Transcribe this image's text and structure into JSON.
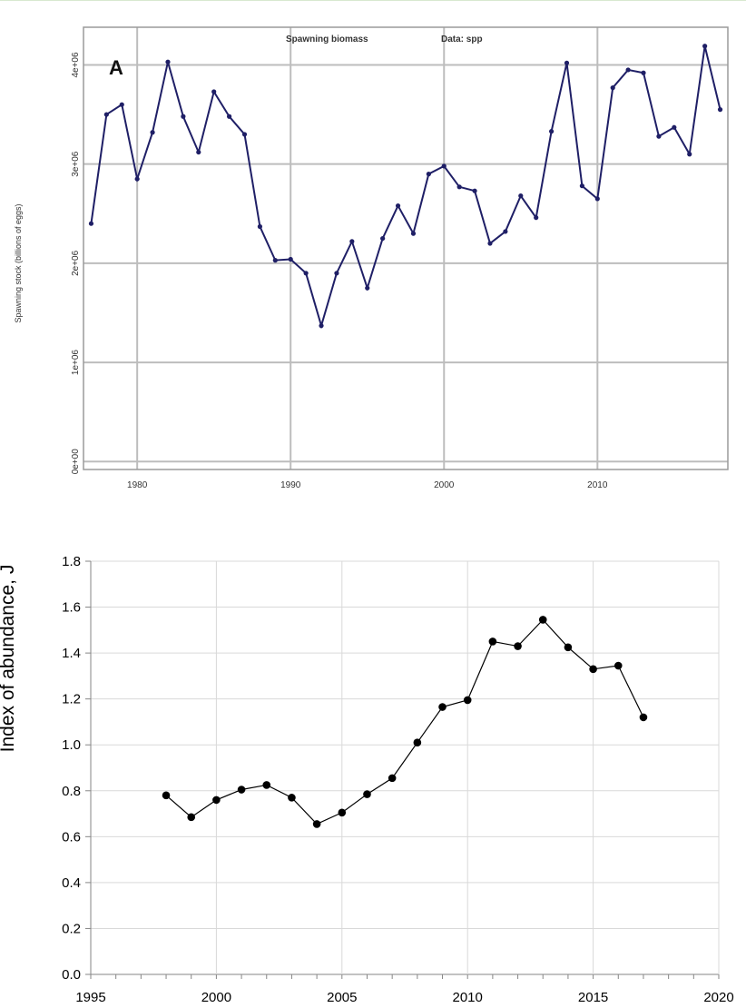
{
  "chart_data": [
    {
      "type": "line",
      "panel_label": "A",
      "title": "Spawning biomass",
      "subtitle": "Data: spp",
      "ylabel": "Spawning stock (billions of eggs)",
      "xlabel": "",
      "xlim": [
        1976.5,
        2018.5
      ],
      "ylim": [
        -0.08,
        4.38
      ],
      "y_scale_factor": 1000000,
      "x_ticks": [
        1980,
        1990,
        2000,
        2010
      ],
      "y_ticks": [
        0,
        1,
        2,
        3,
        4
      ],
      "y_tick_labels": [
        "0e+00",
        "1e+06",
        "2e+06",
        "3e+06",
        "4e+06"
      ],
      "grid": true,
      "line_color": "#1f1f66",
      "x": [
        1977,
        1978,
        1979,
        1980,
        1981,
        1982,
        1983,
        1984,
        1985,
        1986,
        1987,
        1988,
        1989,
        1990,
        1991,
        1992,
        1993,
        1994,
        1995,
        1996,
        1997,
        1998,
        1999,
        2000,
        2001,
        2002,
        2003,
        2004,
        2005,
        2006,
        2007,
        2008,
        2009,
        2010,
        2011,
        2012,
        2013,
        2014,
        2015,
        2016,
        2017,
        2018
      ],
      "values": [
        2.4,
        3.5,
        3.6,
        2.85,
        3.32,
        4.03,
        3.48,
        3.12,
        3.73,
        3.48,
        3.3,
        2.37,
        2.03,
        2.04,
        1.9,
        1.37,
        1.9,
        2.22,
        1.75,
        2.25,
        2.58,
        2.3,
        2.9,
        2.98,
        2.77,
        2.73,
        2.2,
        2.32,
        2.68,
        2.46,
        3.33,
        4.02,
        2.78,
        2.65,
        3.77,
        3.95,
        3.92,
        3.28,
        3.37,
        3.1,
        4.19,
        3.55
      ]
    },
    {
      "type": "line",
      "title": "",
      "xlabel": "",
      "ylabel": "Index of abundance, J",
      "xlim": [
        1995,
        2020
      ],
      "ylim": [
        0,
        1.8
      ],
      "x_ticks": [
        1995,
        2000,
        2005,
        2010,
        2015,
        2020
      ],
      "y_ticks": [
        0.0,
        0.2,
        0.4,
        0.6,
        0.8,
        1.0,
        1.2,
        1.4,
        1.6,
        1.8
      ],
      "y_tick_labels": [
        "0.0",
        "0.2",
        "0.4",
        "0.6",
        "0.8",
        "1.0",
        "1.2",
        "1.4",
        "1.6",
        "1.8"
      ],
      "grid": true,
      "line_color": "#000000",
      "x": [
        1998,
        1999,
        2000,
        2001,
        2002,
        2003,
        2004,
        2005,
        2006,
        2007,
        2008,
        2009,
        2010,
        2011,
        2012,
        2013,
        2014,
        2015,
        2016,
        2017
      ],
      "values": [
        0.78,
        0.685,
        0.76,
        0.805,
        0.825,
        0.77,
        0.655,
        0.705,
        0.785,
        0.855,
        1.01,
        1.165,
        1.195,
        1.45,
        1.43,
        1.545,
        1.425,
        1.33,
        1.345,
        1.12
      ]
    }
  ]
}
